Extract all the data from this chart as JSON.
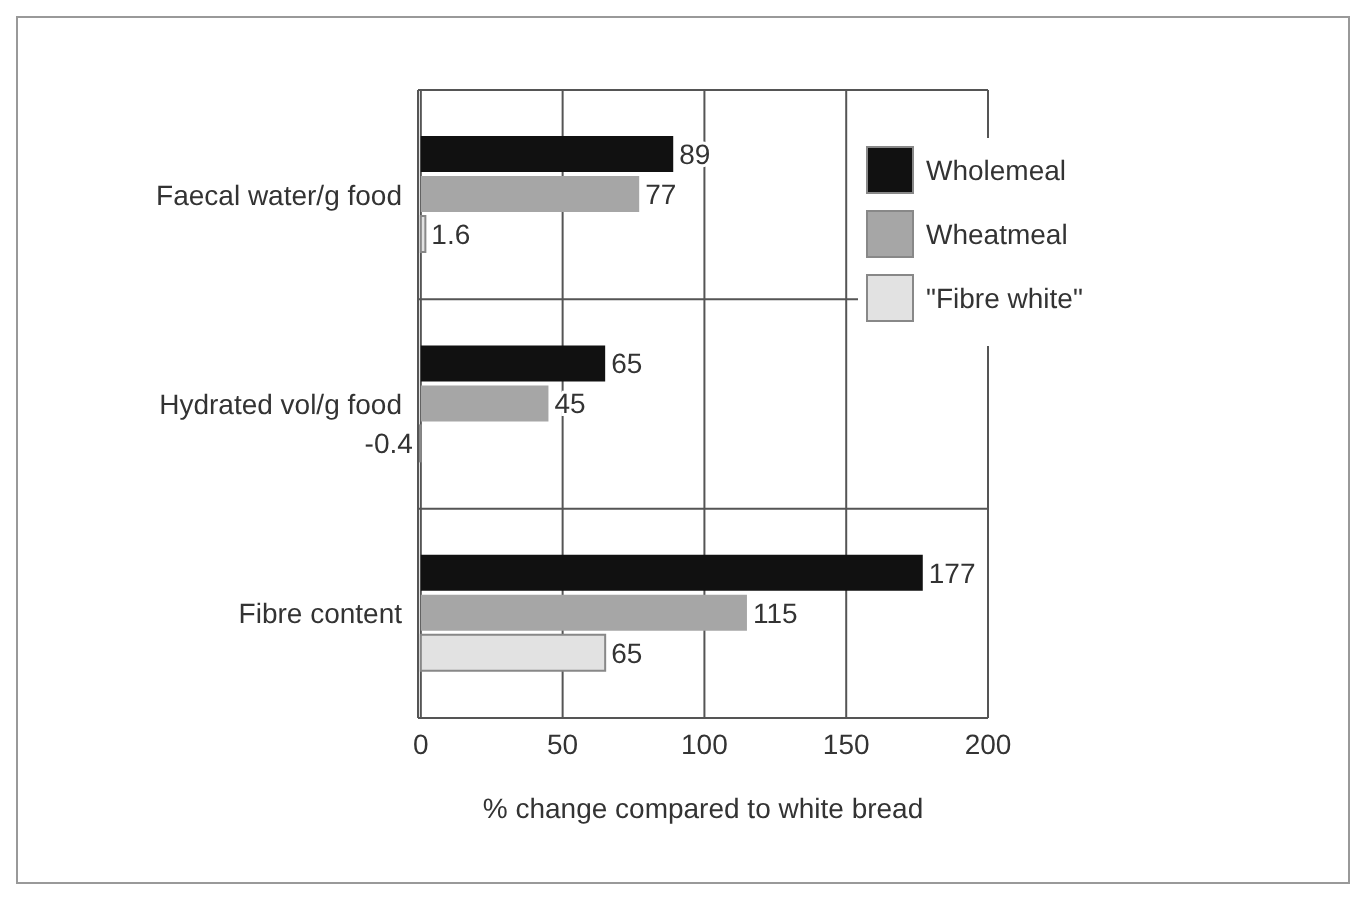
{
  "chart_data": {
    "type": "bar",
    "orientation": "horizontal",
    "xlabel": "% change compared to white bread",
    "categories": [
      "Faecal water/g food",
      "Hydrated vol/g food",
      "Fibre content"
    ],
    "series": [
      {
        "name": "Wholemeal",
        "color": "#111111",
        "values": [
          89,
          65,
          177
        ]
      },
      {
        "name": "Wheatmeal",
        "color": "#a6a6a6",
        "values": [
          77,
          45,
          115
        ]
      },
      {
        "name": "\"Fibre white\"",
        "color": "#e2e2e2",
        "values": [
          1.6,
          -0.4,
          65
        ]
      }
    ],
    "xlim": [
      -1,
      200
    ],
    "xticks": [
      0,
      50,
      100,
      150,
      200
    ],
    "grid": true,
    "legend": "top right",
    "data_labels": true
  }
}
